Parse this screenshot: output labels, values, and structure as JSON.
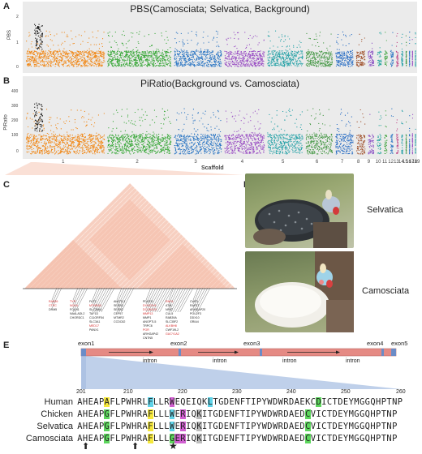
{
  "panels": {
    "a": {
      "letter": "A",
      "title": "PBS(Camosciata; Selvatica, Background)",
      "ylabel": "PBS",
      "yticks": [
        "2",
        "1",
        "0"
      ]
    },
    "b": {
      "letter": "B",
      "title": "PiRatio(Background vs. Camosciata)",
      "ylabel": "PiRatio",
      "yticks": [
        "400",
        "300",
        "200",
        "100",
        "0"
      ]
    },
    "scaffold_label": "Scaffold",
    "scaffolds": [
      "1",
      "2",
      "3",
      "4",
      "5",
      "6",
      "7",
      "8",
      "9",
      "10",
      "11",
      "12",
      "13",
      "14",
      "15",
      "16",
      "17",
      "18",
      "19"
    ],
    "c": {
      "letter": "C"
    },
    "d": {
      "letter": "D",
      "top_label": "Selvatica",
      "bottom_label": "Camosciata"
    },
    "e": {
      "letter": "E"
    }
  },
  "genes_c": [
    {
      "t": "RAB39",
      "red": true
    },
    {
      "t": "CTSC",
      "red": true
    },
    {
      "t": "DRM5",
      "red": false
    },
    {
      "t": "TYR",
      "red": true
    },
    {
      "t": "NOX4",
      "red": true
    },
    {
      "t": "FOLH1",
      "red": false
    },
    {
      "t": "NAALADL2",
      "red": false
    },
    {
      "t": "CHORDC1",
      "red": false
    },
    {
      "t": "FAT3",
      "red": false
    },
    {
      "t": "MTNR1B",
      "red": true
    },
    {
      "t": "SLC36A4",
      "red": false
    },
    {
      "t": "TAF1D",
      "red": false
    },
    {
      "t": "C11ORF54",
      "red": false
    },
    {
      "t": "SLC3A1",
      "red": false
    },
    {
      "t": "MED17",
      "red": true
    },
    {
      "t": "PANX1",
      "red": false
    },
    {
      "t": "AMOTL1",
      "red": false
    },
    {
      "t": "SESN3",
      "red": false
    },
    {
      "t": "SESN2",
      "red": false
    },
    {
      "t": "CEP57",
      "red": false
    },
    {
      "t": "MTMR2",
      "red": false
    },
    {
      "t": "CCDC82",
      "red": false
    },
    {
      "t": "PDGFD",
      "red": false
    },
    {
      "t": "DYNC2H1",
      "red": true
    },
    {
      "t": "DCUN1D5",
      "red": true
    },
    {
      "t": "MMP13",
      "red": true
    },
    {
      "t": "MMP1",
      "red": false
    },
    {
      "t": "ANGPTL5",
      "red": false
    },
    {
      "t": "TRPC6",
      "red": false
    },
    {
      "t": "PGR",
      "red": true
    },
    {
      "t": "ARHGAP42",
      "red": false
    },
    {
      "t": "CNTN5",
      "red": false
    },
    {
      "t": "RNF6",
      "red": true
    },
    {
      "t": "ATM",
      "red": false
    },
    {
      "t": "NPAT",
      "red": false
    },
    {
      "t": "CUL5",
      "red": false
    },
    {
      "t": "RAB39A",
      "red": false
    },
    {
      "t": "SLC35F2",
      "red": false
    },
    {
      "t": "ALKBH8",
      "red": true
    },
    {
      "t": "CWF19L2",
      "red": false
    },
    {
      "t": "GUCY1A2",
      "red": true
    },
    {
      "t": "CWF1",
      "red": false
    },
    {
      "t": "RAP1T",
      "red": false
    },
    {
      "t": "ARHGAP20",
      "red": false
    },
    {
      "t": "POU2F3",
      "red": false
    },
    {
      "t": "DDX10",
      "red": false
    },
    {
      "t": "GRIA4",
      "red": false
    }
  ],
  "gene_model": {
    "exons": [
      "exon1",
      "exon2",
      "exon3",
      "exon4",
      "exon5"
    ],
    "introns": [
      "intron",
      "intron",
      "intron",
      "intron"
    ]
  },
  "alignment": {
    "positions": [
      "201",
      "210",
      "220",
      "230",
      "240",
      "250",
      "260"
    ],
    "rows": [
      {
        "name": "Human",
        "seq": "AHEAPAFLPWHRLFLLRWEQEIQKLTGDENFTIPYWDWRDAEKCDICTDEYMGGQHPTNP"
      },
      {
        "name": "Chicken",
        "seq": "AHEAPGFLPWHRAFLLLWERIQKITGDENFTIPYWDWRDAEDCVICTDEYMGGQHPTNP"
      },
      {
        "name": "Selvatica",
        "seq": "AHEAPGFLPWHRAFLLLWERIQKITGDENFTIPYWDWRDAEDCVICTDEYMGGQHPTNP"
      },
      {
        "name": "Camosciata",
        "seq": "AHEAPGFLPWHRAFLLLGERIQKITGDENFTIPYWDWRDAEDCVICTDEYMGGQHPTNP"
      }
    ],
    "highlight_colors": {
      "yellow": "#f5e83b",
      "green": "#5cd65c",
      "cyan": "#5fd3e8",
      "magenta": "#d05fd0",
      "grey": "#bdbdbd"
    },
    "markers": [
      "up-arrow",
      "up-arrow",
      "star"
    ]
  }
}
